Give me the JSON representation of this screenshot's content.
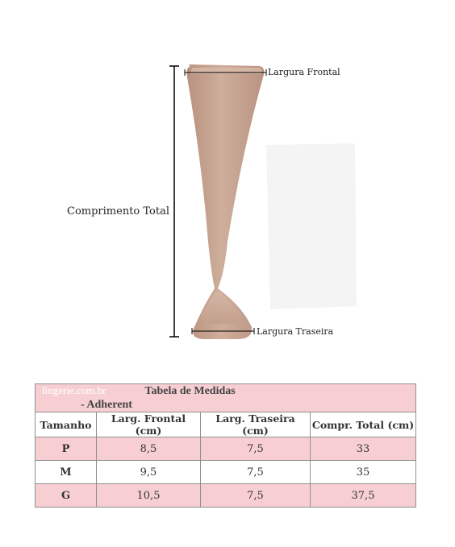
{
  "figure": {
    "labels": {
      "front_width": "Largura Frontal",
      "back_width": "Largura Traseira",
      "total_length": "Comprimento Total"
    },
    "colors": {
      "fabric": "#c8a896",
      "fabric_shadow": "#b48f7b",
      "measure_line": "#000000"
    }
  },
  "table": {
    "brand": "lingerie.com.br",
    "title": "Tabela de Medidas - Adherent",
    "columns": [
      "Tamanho",
      "Larg. Frontal (cm)",
      "Larg. Traseira (cm)",
      "Compr. Total (cm)"
    ],
    "rows": [
      [
        "P",
        "8,5",
        "7,5",
        "33"
      ],
      [
        "M",
        "9,5",
        "7,5",
        "35"
      ],
      [
        "G",
        "10,5",
        "7,5",
        "37,5"
      ]
    ],
    "colors": {
      "header_bg": "#f7cfd3",
      "row_pink": "#f7cfd3",
      "border": "#8f8f8f"
    }
  }
}
